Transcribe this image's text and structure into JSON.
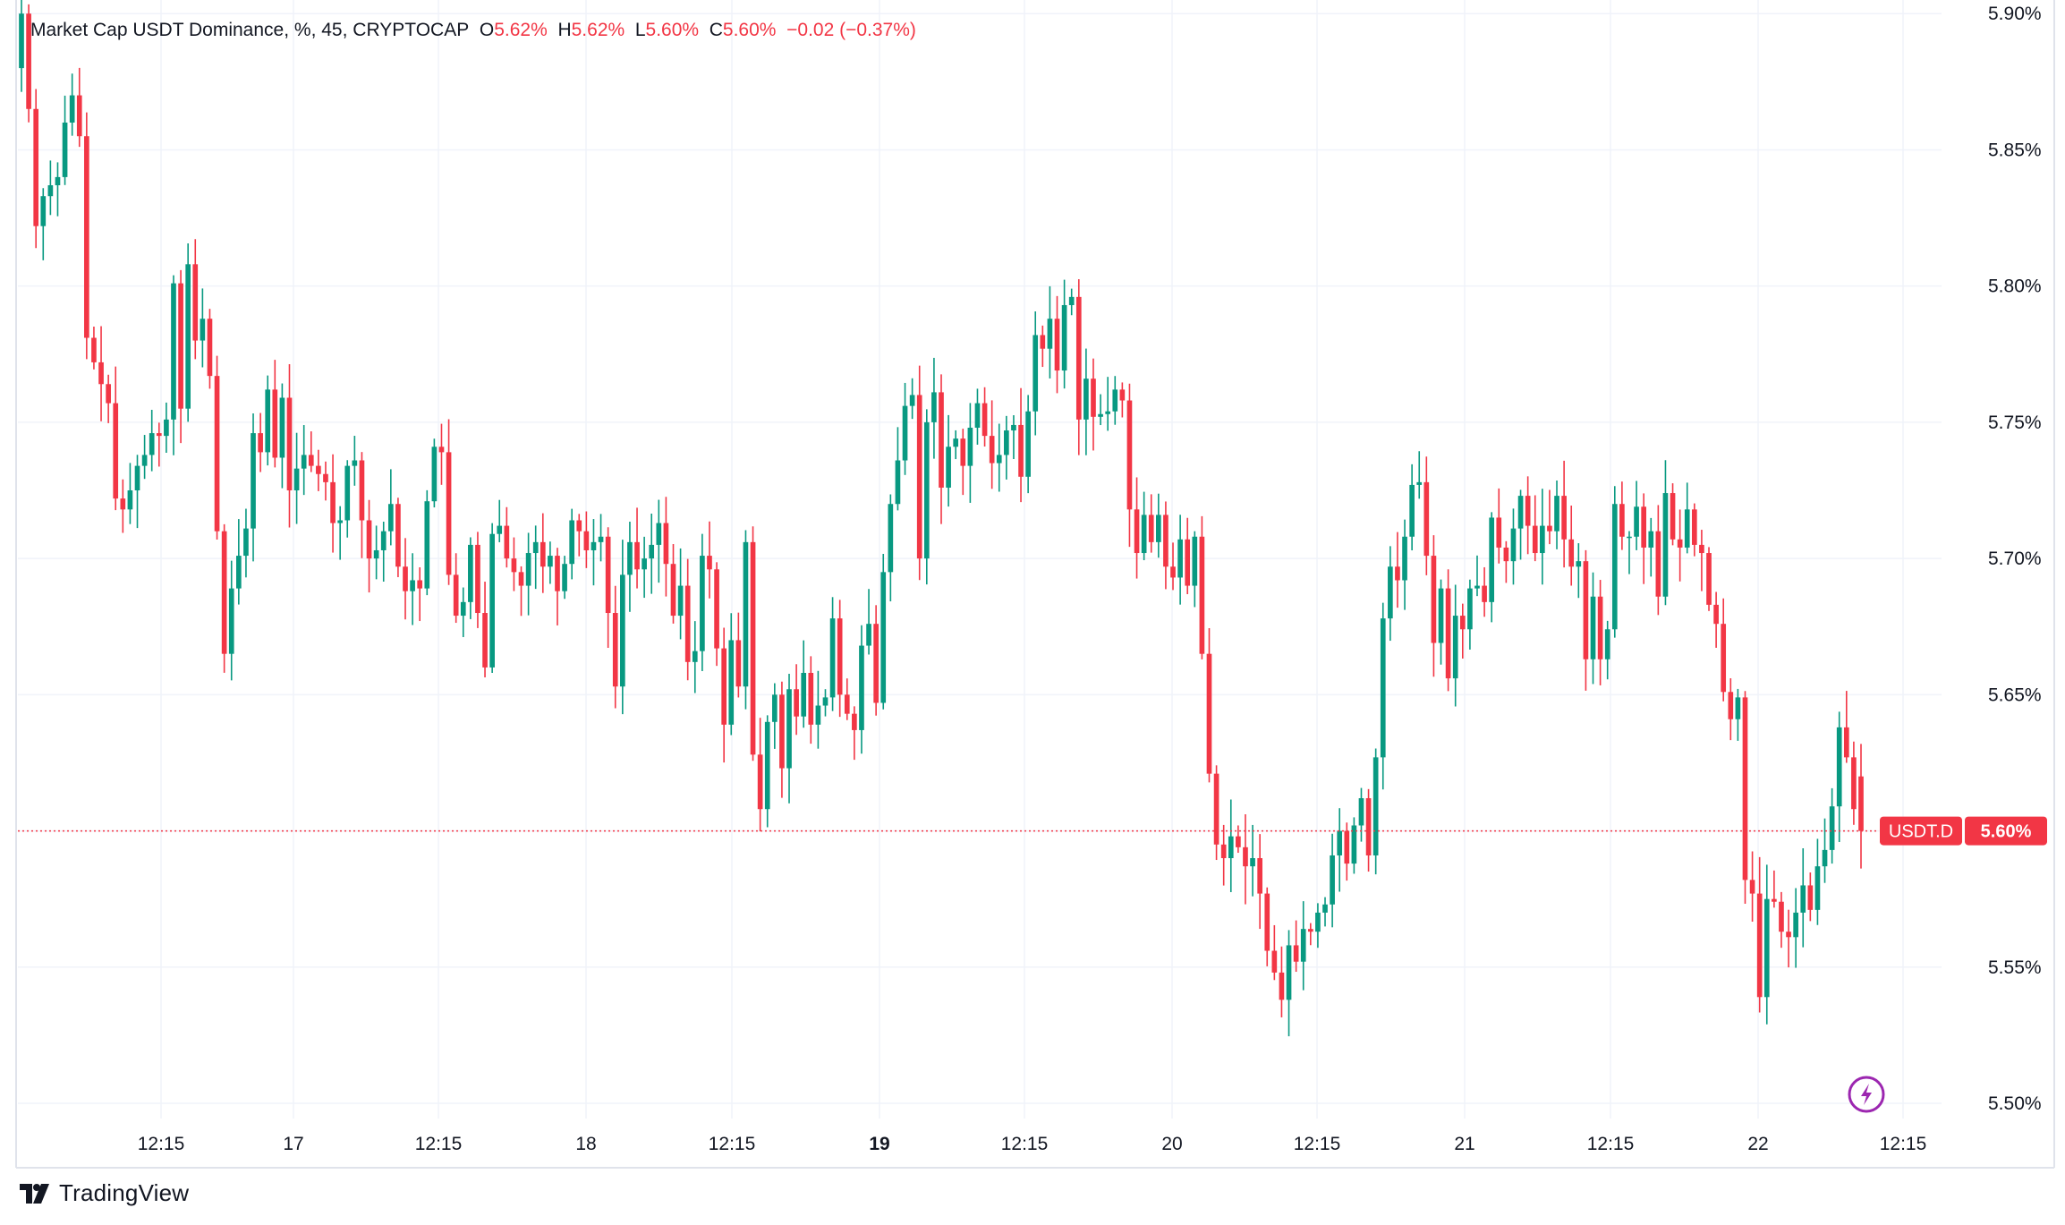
{
  "legend": {
    "title": "Market Cap USDT Dominance",
    "unit": "%",
    "interval": "45",
    "exchange": "CRYPTOCAP",
    "o_label": "O",
    "o_value": "5.62%",
    "h_label": "H",
    "h_value": "5.62%",
    "l_label": "L",
    "l_value": "5.60%",
    "c_label": "C",
    "c_value": "5.60%",
    "change": "−0.02 (−0.37%)"
  },
  "price_tag": {
    "symbol": "USDT.D",
    "value": "5.60%"
  },
  "branding": {
    "name": "TradingView",
    "icon": "tradingview-logo-icon"
  },
  "colors": {
    "up": "#089981",
    "down": "#f23645",
    "grid": "#f0f3fa",
    "text": "#131722"
  },
  "chart_data": {
    "type": "candlestick",
    "ylim": [
      5.478,
      5.905
    ],
    "y_ticks": [
      5.5,
      5.55,
      5.6,
      5.65,
      5.7,
      5.75,
      5.8,
      5.85,
      5.9
    ],
    "y_tick_labels": [
      "5.50%",
      "5.55%",
      "5.60%",
      "5.65%",
      "5.70%",
      "5.75%",
      "5.80%",
      "5.85%",
      "5.90%"
    ],
    "x_ticks": [
      {
        "label": "12:15",
        "x": 5,
        "bold": false
      },
      {
        "label": "17",
        "x": 10,
        "bold": false
      },
      {
        "label": "12:15",
        "x": 15,
        "bold": false
      },
      {
        "label": "18",
        "x": 20,
        "bold": false
      },
      {
        "label": "12:15",
        "x": 25,
        "bold": false
      },
      {
        "label": "19",
        "x": 30,
        "bold": true
      },
      {
        "label": "12:15",
        "x": 35,
        "bold": false
      },
      {
        "label": "20",
        "x": 40,
        "bold": false
      },
      {
        "label": "12:15",
        "x": 45,
        "bold": false
      },
      {
        "label": "21",
        "x": 50,
        "bold": false
      },
      {
        "label": "12:15",
        "x": 55,
        "bold": false
      },
      {
        "label": "22",
        "x": 60,
        "bold": false
      },
      {
        "label": "12:15",
        "x": 65,
        "bold": false
      }
    ],
    "x_range": [
      -0.3,
      66.6
    ],
    "last_price": 5.6,
    "close": [
      5.9,
      5.865,
      5.822,
      5.833,
      5.837,
      5.84,
      5.86,
      5.87,
      5.855,
      5.781,
      5.772,
      5.764,
      5.757,
      5.722,
      5.718,
      5.725,
      5.734,
      5.738,
      5.746,
      5.745,
      5.751,
      5.801,
      5.755,
      5.808,
      5.78,
      5.788,
      5.767,
      5.71,
      5.665,
      5.689,
      5.701,
      5.711,
      5.746,
      5.739,
      5.762,
      5.737,
      5.759,
      5.725,
      5.733,
      5.738,
      5.734,
      5.731,
      5.728,
      5.713,
      5.714,
      5.734,
      5.736,
      5.714,
      5.7,
      5.703,
      5.71,
      5.72,
      5.697,
      5.688,
      5.692,
      5.689,
      5.721,
      5.741,
      5.739,
      5.694,
      5.679,
      5.684,
      5.705,
      5.68,
      5.66,
      5.709,
      5.712,
      5.7,
      5.695,
      5.69,
      5.702,
      5.706,
      5.697,
      5.701,
      5.688,
      5.698,
      5.714,
      5.71,
      5.703,
      5.706,
      5.708,
      5.68,
      5.653,
      5.694,
      5.706,
      5.696,
      5.7,
      5.705,
      5.713,
      5.698,
      5.679,
      5.69,
      5.662,
      5.666,
      5.701,
      5.696,
      5.667,
      5.639,
      5.67,
      5.653,
      5.706,
      5.628,
      5.608,
      5.64,
      5.65,
      5.623,
      5.652,
      5.642,
      5.658,
      5.639,
      5.646,
      5.649,
      5.678,
      5.65,
      5.643,
      5.637,
      5.668,
      5.676,
      5.647,
      5.695,
      5.72,
      5.736,
      5.756,
      5.76,
      5.7,
      5.75,
      5.761,
      5.726,
      5.741,
      5.744,
      5.734,
      5.748,
      5.757,
      5.745,
      5.735,
      5.738,
      5.747,
      5.749,
      5.73,
      5.754,
      5.782,
      5.777,
      5.788,
      5.769,
      5.793,
      5.796,
      5.751,
      5.766,
      5.752,
      5.753,
      5.754,
      5.762,
      5.758,
      5.718,
      5.702,
      5.716,
      5.706,
      5.716,
      5.697,
      5.693,
      5.707,
      5.69,
      5.708,
      5.665,
      5.621,
      5.595,
      5.59,
      5.598,
      5.594,
      5.587,
      5.59,
      5.577,
      5.556,
      5.548,
      5.538,
      5.558,
      5.552,
      5.564,
      5.563,
      5.57,
      5.573,
      5.591,
      5.6,
      5.588,
      5.602,
      5.612,
      5.591,
      5.627,
      5.678,
      5.697,
      5.692,
      5.708,
      5.727,
      5.728,
      5.701,
      5.669,
      5.689,
      5.656,
      5.679,
      5.674,
      5.689,
      5.69,
      5.684,
      5.715,
      5.704,
      5.699,
      5.711,
      5.723,
      5.712,
      5.702,
      5.712,
      5.71,
      5.723,
      5.707,
      5.697,
      5.699,
      5.663,
      5.686,
      5.663,
      5.674,
      5.72,
      5.708,
      5.708,
      5.719,
      5.704,
      5.71,
      5.686,
      5.724,
      5.707,
      5.704,
      5.718,
      5.705,
      5.702,
      5.683,
      5.676,
      5.651,
      5.641,
      5.649,
      5.582,
      5.577,
      5.539,
      5.575,
      5.574,
      5.563,
      5.561,
      5.57,
      5.58,
      5.571,
      5.587,
      5.593,
      5.609,
      5.638,
      5.627,
      5.608,
      5.6
    ],
    "open": [
      5.88,
      5.9,
      5.865,
      5.822,
      5.833,
      5.837,
      5.84,
      5.86,
      5.87,
      5.855,
      5.781,
      5.772,
      5.764,
      5.757,
      5.722,
      5.718,
      5.725,
      5.734,
      5.738,
      5.746,
      5.745,
      5.751,
      5.801,
      5.755,
      5.808,
      5.78,
      5.788,
      5.767,
      5.71,
      5.665,
      5.689,
      5.701,
      5.711,
      5.746,
      5.739,
      5.762,
      5.737,
      5.759,
      5.725,
      5.733,
      5.738,
      5.734,
      5.731,
      5.728,
      5.713,
      5.714,
      5.734,
      5.736,
      5.714,
      5.7,
      5.703,
      5.71,
      5.72,
      5.697,
      5.688,
      5.692,
      5.689,
      5.721,
      5.741,
      5.739,
      5.694,
      5.679,
      5.684,
      5.705,
      5.68,
      5.66,
      5.709,
      5.712,
      5.7,
      5.695,
      5.69,
      5.702,
      5.706,
      5.697,
      5.701,
      5.688,
      5.698,
      5.714,
      5.71,
      5.703,
      5.706,
      5.708,
      5.68,
      5.653,
      5.694,
      5.706,
      5.696,
      5.7,
      5.705,
      5.713,
      5.698,
      5.679,
      5.69,
      5.662,
      5.666,
      5.701,
      5.696,
      5.667,
      5.639,
      5.67,
      5.653,
      5.706,
      5.628,
      5.608,
      5.64,
      5.65,
      5.623,
      5.652,
      5.642,
      5.658,
      5.639,
      5.646,
      5.649,
      5.678,
      5.65,
      5.643,
      5.637,
      5.668,
      5.676,
      5.647,
      5.695,
      5.72,
      5.736,
      5.756,
      5.76,
      5.7,
      5.75,
      5.761,
      5.726,
      5.741,
      5.744,
      5.734,
      5.748,
      5.757,
      5.745,
      5.735,
      5.738,
      5.747,
      5.749,
      5.73,
      5.754,
      5.782,
      5.777,
      5.788,
      5.769,
      5.793,
      5.796,
      5.751,
      5.766,
      5.752,
      5.753,
      5.754,
      5.762,
      5.758,
      5.718,
      5.702,
      5.716,
      5.706,
      5.716,
      5.697,
      5.693,
      5.707,
      5.69,
      5.708,
      5.665,
      5.621,
      5.595,
      5.59,
      5.598,
      5.594,
      5.587,
      5.59,
      5.577,
      5.556,
      5.548,
      5.538,
      5.558,
      5.552,
      5.564,
      5.563,
      5.57,
      5.573,
      5.591,
      5.6,
      5.588,
      5.602,
      5.612,
      5.591,
      5.627,
      5.678,
      5.697,
      5.692,
      5.708,
      5.727,
      5.728,
      5.701,
      5.669,
      5.689,
      5.656,
      5.679,
      5.674,
      5.689,
      5.69,
      5.684,
      5.715,
      5.704,
      5.699,
      5.711,
      5.723,
      5.712,
      5.702,
      5.712,
      5.71,
      5.723,
      5.707,
      5.697,
      5.699,
      5.663,
      5.686,
      5.663,
      5.674,
      5.72,
      5.708,
      5.708,
      5.719,
      5.704,
      5.71,
      5.686,
      5.724,
      5.707,
      5.704,
      5.718,
      5.705,
      5.702,
      5.683,
      5.676,
      5.651,
      5.641,
      5.649,
      5.582,
      5.577,
      5.539,
      5.575,
      5.574,
      5.563,
      5.561,
      5.57,
      5.58,
      5.571,
      5.587,
      5.593,
      5.609,
      5.638,
      5.627,
      5.62
    ],
    "note": "Each candle: wick extends ~0.005-0.02 beyond body; values estimated from the chart."
  }
}
